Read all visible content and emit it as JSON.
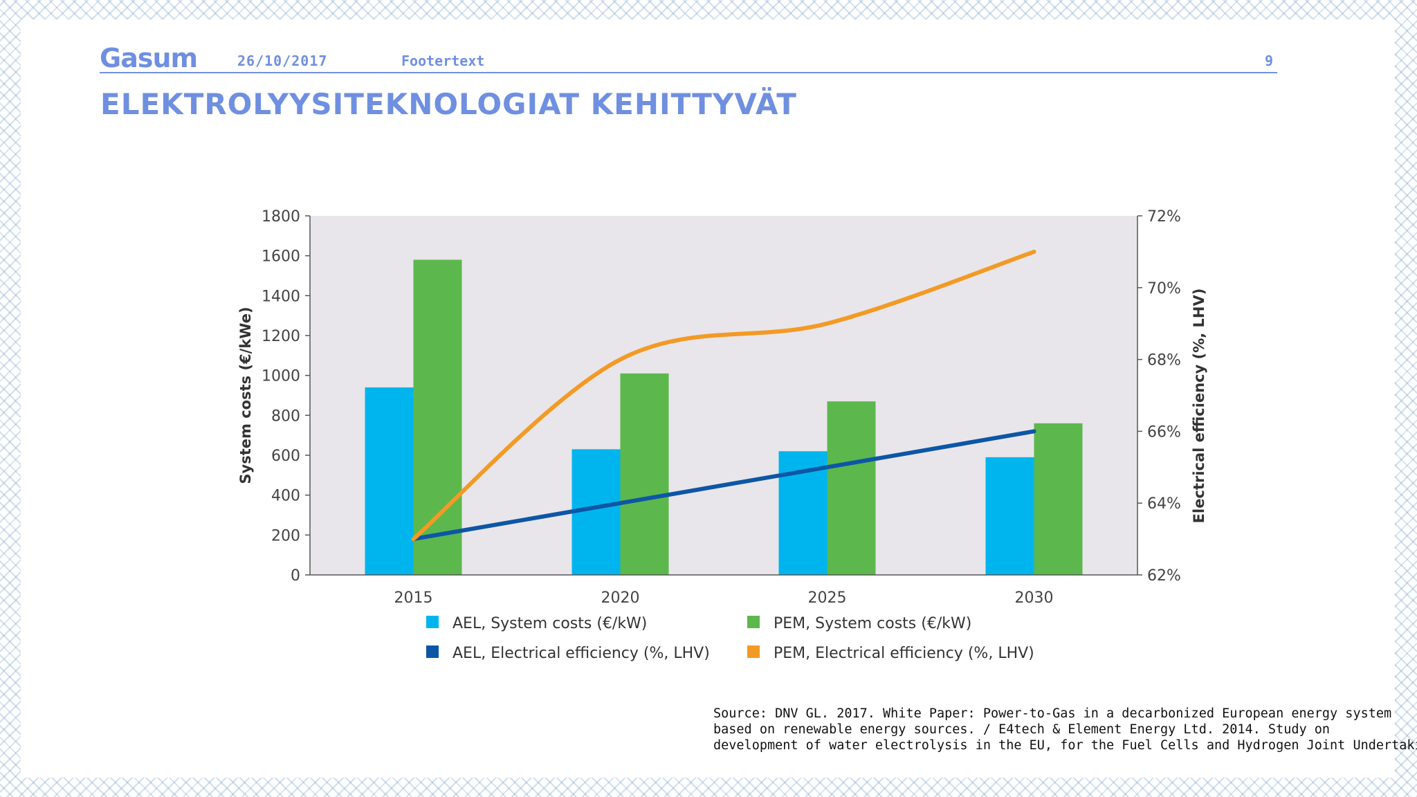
{
  "header": {
    "logo": "Gasum",
    "date": "26/10/2017",
    "footer_text": "Footertext",
    "page_number": "9"
  },
  "title": "ELEKTROLYYSITEKNOLOGIAT KEHITTYVÄT",
  "source_lines": [
    "Source: DNV GL. 2017. White Paper: Power-to-Gas in a decarbonized European energy system",
    "based on renewable energy sources. / E4tech & Element Energy Ltd. 2014. Study on",
    "development of water electrolysis in the EU, for the Fuel Cells and Hydrogen Joint Undertaking."
  ],
  "chart_data": {
    "type": "bar",
    "categories": [
      "2015",
      "2020",
      "2025",
      "2030"
    ],
    "ylabel": "System costs (€/kWe)",
    "y2label": "Electrical efficiency (%, LHV)",
    "ylim": [
      0,
      1800
    ],
    "y2lim": [
      62,
      72
    ],
    "yticks": [
      "0",
      "200",
      "400",
      "600",
      "800",
      "1000",
      "1200",
      "1400",
      "1600",
      "1800"
    ],
    "y2ticks": [
      "62%",
      "64%",
      "66%",
      "68%",
      "70%",
      "72%"
    ],
    "plot_background": "#e8e6ea",
    "legend_position": "bottom",
    "series": [
      {
        "name": "AEL, System costs (€/kW)",
        "type": "bar",
        "axis": "left",
        "color": "#00b5ee",
        "values": [
          940,
          630,
          620,
          590
        ]
      },
      {
        "name": "PEM, System costs (€/kW)",
        "type": "bar",
        "axis": "left",
        "color": "#5cb84c",
        "values": [
          1580,
          1010,
          870,
          760
        ]
      },
      {
        "name": "AEL, Electrical efficiency (%, LHV)",
        "type": "line",
        "axis": "right",
        "color": "#0d56a6",
        "values": [
          63,
          64,
          65,
          66
        ]
      },
      {
        "name": "PEM, Electrical efficiency (%, LHV)",
        "type": "line",
        "axis": "right",
        "color": "#f39a25",
        "smooth": true,
        "values": [
          63,
          68,
          69,
          71
        ]
      }
    ]
  }
}
